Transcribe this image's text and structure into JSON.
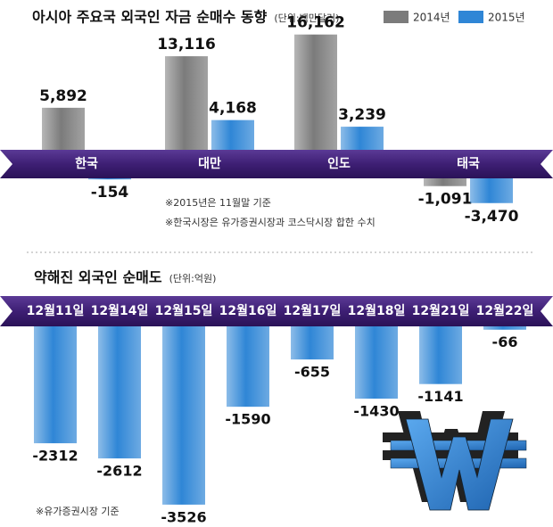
{
  "chart_data": [
    {
      "type": "bar",
      "title": "아시아 주요국 외국인 자금 순매수 동향",
      "unit": "(단위:백만달러)",
      "categories": [
        "한국",
        "대만",
        "인도",
        "태국"
      ],
      "series": [
        {
          "name": "2014년",
          "color": "#7b7b7b",
          "values": [
            5892,
            13116,
            16162,
            -1091
          ],
          "value_labels": [
            "5,892",
            "13,116",
            "16,162",
            "-1,091"
          ]
        },
        {
          "name": "2015년",
          "color": "#2f86d6",
          "values": [
            -154,
            4168,
            3239,
            -3470
          ],
          "value_labels": [
            "-154",
            "4,168",
            "3,239",
            "-3,470"
          ]
        }
      ],
      "legend": "top-right",
      "notes": [
        "※2015년은 11월말 기준",
        "※한국시장은 유가증권시장과 코스닥시장 합한 수치"
      ]
    },
    {
      "type": "bar",
      "title": "약해진 외국인 순매도",
      "unit": "(단위:억원)",
      "categories": [
        "12월11일",
        "12월14일",
        "12월15일",
        "12월16일",
        "12월17일",
        "12월18일",
        "12월21일",
        "12월22일"
      ],
      "values": [
        -2312,
        -2612,
        -3526,
        -1590,
        -655,
        -1430,
        -1141,
        -66
      ],
      "color": "#2f86d6",
      "notes": [
        "※유가증권시장 기준"
      ]
    }
  ]
}
